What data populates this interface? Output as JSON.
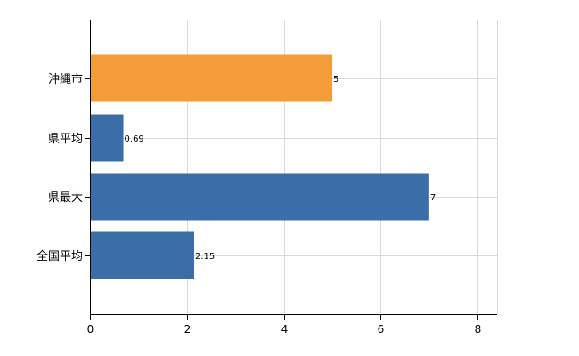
{
  "chart_data": {
    "type": "bar",
    "orientation": "horizontal",
    "categories": [
      "沖縄市",
      "県平均",
      "県最大",
      "全国平均"
    ],
    "values": [
      5,
      0.69,
      7,
      2.15
    ],
    "value_labels": [
      "5",
      "0.69",
      "7",
      "2.15"
    ],
    "bar_colors": [
      "#f39c39",
      "#3b6ea8",
      "#3b6ea8",
      "#3b6ea8"
    ],
    "xlim": [
      0,
      8.4
    ],
    "xticks": [
      0,
      2,
      4,
      6,
      8
    ],
    "title": "",
    "xlabel": "",
    "ylabel": "",
    "grid": true
  }
}
